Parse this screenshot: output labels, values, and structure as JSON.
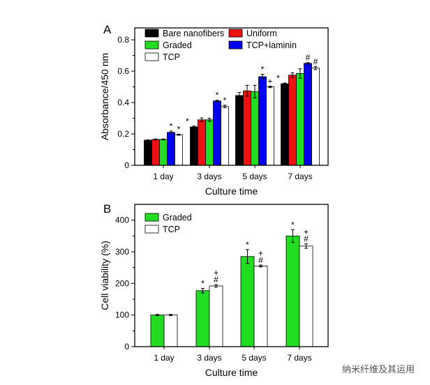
{
  "watermark": "纳米纤维及其运用",
  "chart_data": [
    {
      "type": "bar",
      "panel_label": "A",
      "xlabel": "Culture time",
      "ylabel": "Absorbance/450 nm",
      "categories": [
        "1 day",
        "3 days",
        "5 days",
        "7 days"
      ],
      "ylim": [
        0,
        0.876
      ],
      "yticks": [
        0,
        0.2,
        0.4,
        0.6,
        0.8
      ],
      "ytick_labels": [
        "0",
        "0.2",
        "0.4",
        "0.6",
        "0.8"
      ],
      "legend_placement": "top-left",
      "series": [
        {
          "name": "Bare nanofibers",
          "color": "#000000",
          "values": [
            0.16,
            0.245,
            0.445,
            0.52
          ],
          "errors": [
            0.003,
            0.005,
            0.02,
            0.005
          ],
          "annotations": [
            "",
            "*",
            "",
            "*"
          ]
        },
        {
          "name": "Uniform",
          "color": "#ee1111",
          "values": [
            0.165,
            0.29,
            0.475,
            0.575
          ],
          "errors": [
            0.003,
            0.012,
            0.035,
            0.015
          ],
          "annotations": [
            "",
            "",
            "",
            ""
          ]
        },
        {
          "name": "Graded",
          "color": "#22dd22",
          "values": [
            0.165,
            0.29,
            0.47,
            0.585
          ],
          "errors": [
            0.003,
            0.01,
            0.04,
            0.03
          ],
          "annotations": [
            "",
            "",
            "",
            ""
          ]
        },
        {
          "name": "TCP+laminin",
          "color": "#0000ee",
          "values": [
            0.21,
            0.41,
            0.565,
            0.65
          ],
          "errors": [
            0.008,
            0.005,
            0.015,
            0.005
          ],
          "annotations": [
            "*",
            "*",
            "*",
            "#"
          ]
        },
        {
          "name": "TCP",
          "color": "#ffffff",
          "values": [
            0.195,
            0.375,
            0.5,
            0.62
          ],
          "errors": [
            0.003,
            0.008,
            0.005,
            0.01
          ],
          "annotations": [
            "*",
            "*",
            "+",
            "#"
          ]
        }
      ]
    },
    {
      "type": "bar",
      "panel_label": "B",
      "xlabel": "Culture time",
      "ylabel": "Cell viability (%)",
      "categories": [
        "1 day",
        "3 days",
        "5 days",
        "7 days"
      ],
      "ylim": [
        0,
        450
      ],
      "yticks": [
        0,
        100,
        200,
        300,
        400
      ],
      "ytick_labels": [
        "0",
        "100",
        "200",
        "300",
        "400"
      ],
      "legend_placement": "top-left",
      "series": [
        {
          "name": "Graded",
          "color": "#22dd22",
          "values": [
            100,
            177,
            285,
            350
          ],
          "errors": [
            2,
            7,
            22,
            20
          ],
          "annotations": [
            "",
            "*",
            "*",
            "*"
          ]
        },
        {
          "name": "TCP",
          "color": "#ffffff",
          "values": [
            100,
            192,
            255,
            318
          ],
          "errors": [
            2,
            4,
            3,
            7
          ],
          "annotations": [
            "",
            "+#",
            "+#",
            "+#"
          ]
        }
      ]
    }
  ]
}
